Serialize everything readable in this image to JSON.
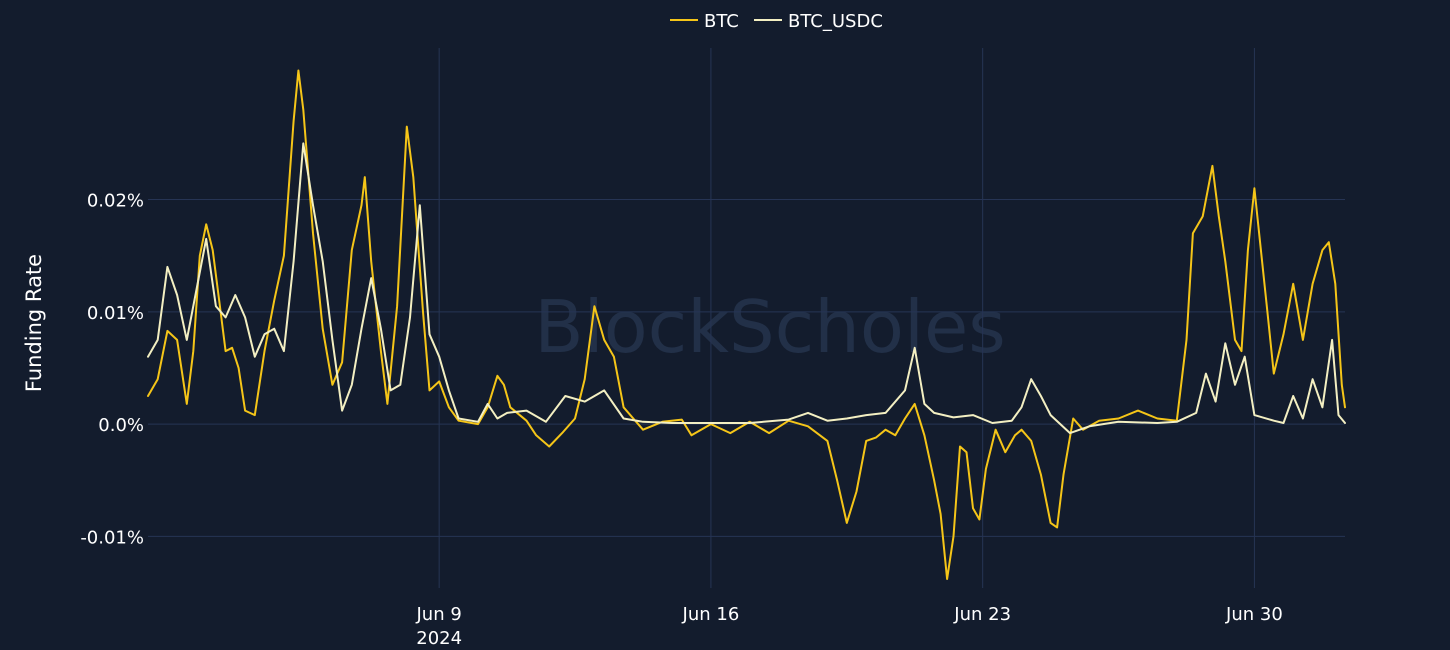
{
  "chart_data": {
    "type": "line",
    "watermark": "BlockScholes",
    "ylabel": "Funding Rate",
    "x_axis": {
      "range": [
        "2024-06-01T12:00",
        "2024-07-02T08:00"
      ],
      "ticks": [
        {
          "value": "2024-06-09",
          "label": "Jun 9",
          "sublabel": "2024"
        },
        {
          "value": "2024-06-16",
          "label": "Jun 16",
          "sublabel": ""
        },
        {
          "value": "2024-06-23",
          "label": "Jun 23",
          "sublabel": ""
        },
        {
          "value": "2024-06-30",
          "label": "Jun 30",
          "sublabel": ""
        }
      ]
    },
    "y_axis": {
      "range": [
        -0.0146,
        0.0335
      ],
      "ticks": [
        {
          "value": -0.01,
          "label": "-0.01%"
        },
        {
          "value": 0.0,
          "label": "0.0%"
        },
        {
          "value": 0.01,
          "label": "0.01%"
        },
        {
          "value": 0.02,
          "label": "0.02%"
        }
      ]
    },
    "grid": true,
    "legend_position": "top-center",
    "series": [
      {
        "name": "BTC",
        "color": "#f5c518",
        "points": [
          [
            "2024-06-01T12:00",
            0.0025
          ],
          [
            "2024-06-01T18:00",
            0.004
          ],
          [
            "2024-06-02T00:00",
            0.0083
          ],
          [
            "2024-06-02T06:00",
            0.0075
          ],
          [
            "2024-06-02T12:00",
            0.0018
          ],
          [
            "2024-06-02T16:00",
            0.0065
          ],
          [
            "2024-06-02T20:00",
            0.015
          ],
          [
            "2024-06-03T00:00",
            0.0178
          ],
          [
            "2024-06-03T04:00",
            0.0155
          ],
          [
            "2024-06-03T08:00",
            0.011
          ],
          [
            "2024-06-03T12:00",
            0.0065
          ],
          [
            "2024-06-03T16:00",
            0.0068
          ],
          [
            "2024-06-03T20:00",
            0.005
          ],
          [
            "2024-06-04T00:00",
            0.0012
          ],
          [
            "2024-06-04T06:00",
            0.0008
          ],
          [
            "2024-06-04T12:00",
            0.0065
          ],
          [
            "2024-06-04T18:00",
            0.011
          ],
          [
            "2024-06-05T00:00",
            0.015
          ],
          [
            "2024-06-05T06:00",
            0.027
          ],
          [
            "2024-06-05T09:00",
            0.0315
          ],
          [
            "2024-06-05T12:00",
            0.028
          ],
          [
            "2024-06-05T18:00",
            0.017
          ],
          [
            "2024-06-06T00:00",
            0.0085
          ],
          [
            "2024-06-06T06:00",
            0.0035
          ],
          [
            "2024-06-06T12:00",
            0.0055
          ],
          [
            "2024-06-06T18:00",
            0.0155
          ],
          [
            "2024-06-07T00:00",
            0.0195
          ],
          [
            "2024-06-07T02:00",
            0.022
          ],
          [
            "2024-06-07T06:00",
            0.0145
          ],
          [
            "2024-06-07T12:00",
            0.0065
          ],
          [
            "2024-06-07T16:00",
            0.0018
          ],
          [
            "2024-06-07T22:00",
            0.0105
          ],
          [
            "2024-06-08T04:00",
            0.0265
          ],
          [
            "2024-06-08T08:00",
            0.022
          ],
          [
            "2024-06-08T14:00",
            0.01
          ],
          [
            "2024-06-08T18:00",
            0.003
          ],
          [
            "2024-06-09T00:00",
            0.0038
          ],
          [
            "2024-06-09T06:00",
            0.0015
          ],
          [
            "2024-06-09T12:00",
            0.0003
          ],
          [
            "2024-06-10T00:00",
            0.0
          ],
          [
            "2024-06-10T06:00",
            0.0015
          ],
          [
            "2024-06-10T12:00",
            0.0043
          ],
          [
            "2024-06-10T16:00",
            0.0035
          ],
          [
            "2024-06-10T20:00",
            0.0015
          ],
          [
            "2024-06-11T06:00",
            0.0003
          ],
          [
            "2024-06-11T12:00",
            -0.001
          ],
          [
            "2024-06-11T20:00",
            -0.002
          ],
          [
            "2024-06-12T04:00",
            -0.0008
          ],
          [
            "2024-06-12T12:00",
            0.0005
          ],
          [
            "2024-06-12T18:00",
            0.004
          ],
          [
            "2024-06-13T00:00",
            0.0105
          ],
          [
            "2024-06-13T06:00",
            0.0075
          ],
          [
            "2024-06-13T12:00",
            0.006
          ],
          [
            "2024-06-13T18:00",
            0.0015
          ],
          [
            "2024-06-14T06:00",
            -0.0005
          ],
          [
            "2024-06-14T18:00",
            0.0002
          ],
          [
            "2024-06-15T06:00",
            0.0004
          ],
          [
            "2024-06-15T12:00",
            -0.001
          ],
          [
            "2024-06-16T00:00",
            0.0
          ],
          [
            "2024-06-16T12:00",
            -0.0008
          ],
          [
            "2024-06-17T00:00",
            0.0002
          ],
          [
            "2024-06-17T12:00",
            -0.0008
          ],
          [
            "2024-06-18T00:00",
            0.0003
          ],
          [
            "2024-06-18T12:00",
            -0.0002
          ],
          [
            "2024-06-19T00:00",
            -0.0015
          ],
          [
            "2024-06-19T06:00",
            -0.005
          ],
          [
            "2024-06-19T12:00",
            -0.0088
          ],
          [
            "2024-06-19T18:00",
            -0.006
          ],
          [
            "2024-06-20T00:00",
            -0.0015
          ],
          [
            "2024-06-20T06:00",
            -0.0012
          ],
          [
            "2024-06-20T12:00",
            -0.0005
          ],
          [
            "2024-06-20T18:00",
            -0.001
          ],
          [
            "2024-06-21T00:00",
            0.0005
          ],
          [
            "2024-06-21T06:00",
            0.0018
          ],
          [
            "2024-06-21T12:00",
            -0.001
          ],
          [
            "2024-06-21T18:00",
            -0.005
          ],
          [
            "2024-06-21T22:00",
            -0.008
          ],
          [
            "2024-06-22T02:00",
            -0.0138
          ],
          [
            "2024-06-22T06:00",
            -0.01
          ],
          [
            "2024-06-22T10:00",
            -0.002
          ],
          [
            "2024-06-22T14:00",
            -0.0025
          ],
          [
            "2024-06-22T18:00",
            -0.0075
          ],
          [
            "2024-06-22T22:00",
            -0.0085
          ],
          [
            "2024-06-23T02:00",
            -0.004
          ],
          [
            "2024-06-23T08:00",
            -0.0005
          ],
          [
            "2024-06-23T14:00",
            -0.0025
          ],
          [
            "2024-06-23T20:00",
            -0.001
          ],
          [
            "2024-06-24T00:00",
            -0.0005
          ],
          [
            "2024-06-24T06:00",
            -0.0015
          ],
          [
            "2024-06-24T12:00",
            -0.0045
          ],
          [
            "2024-06-24T18:00",
            -0.0088
          ],
          [
            "2024-06-24T22:00",
            -0.0092
          ],
          [
            "2024-06-25T02:00",
            -0.0045
          ],
          [
            "2024-06-25T08:00",
            0.0005
          ],
          [
            "2024-06-25T14:00",
            -0.0005
          ],
          [
            "2024-06-26T00:00",
            0.0003
          ],
          [
            "2024-06-26T12:00",
            0.0005
          ],
          [
            "2024-06-27T00:00",
            0.0012
          ],
          [
            "2024-06-27T12:00",
            0.0005
          ],
          [
            "2024-06-28T00:00",
            0.0003
          ],
          [
            "2024-06-28T06:00",
            0.0075
          ],
          [
            "2024-06-28T10:00",
            0.017
          ],
          [
            "2024-06-28T16:00",
            0.0185
          ],
          [
            "2024-06-28T22:00",
            0.023
          ],
          [
            "2024-06-29T02:00",
            0.0185
          ],
          [
            "2024-06-29T06:00",
            0.0145
          ],
          [
            "2024-06-29T12:00",
            0.0075
          ],
          [
            "2024-06-29T16:00",
            0.0065
          ],
          [
            "2024-06-29T20:00",
            0.0155
          ],
          [
            "2024-06-30T00:00",
            0.021
          ],
          [
            "2024-06-30T04:00",
            0.0155
          ],
          [
            "2024-06-30T08:00",
            0.01
          ],
          [
            "2024-06-30T12:00",
            0.0045
          ],
          [
            "2024-06-30T18:00",
            0.008
          ],
          [
            "2024-07-01T00:00",
            0.0125
          ],
          [
            "2024-07-01T06:00",
            0.0075
          ],
          [
            "2024-07-01T12:00",
            0.0125
          ],
          [
            "2024-07-01T18:00",
            0.0155
          ],
          [
            "2024-07-01T22:00",
            0.0162
          ],
          [
            "2024-07-02T02:00",
            0.0125
          ],
          [
            "2024-07-02T06:00",
            0.0035
          ],
          [
            "2024-07-02T08:00",
            0.0015
          ]
        ]
      },
      {
        "name": "BTC_USDC",
        "color": "#f3efc2",
        "points": [
          [
            "2024-06-01T12:00",
            0.006
          ],
          [
            "2024-06-01T18:00",
            0.0075
          ],
          [
            "2024-06-02T00:00",
            0.014
          ],
          [
            "2024-06-02T06:00",
            0.0115
          ],
          [
            "2024-06-02T12:00",
            0.0075
          ],
          [
            "2024-06-02T18:00",
            0.012
          ],
          [
            "2024-06-03T00:00",
            0.0165
          ],
          [
            "2024-06-03T06:00",
            0.0105
          ],
          [
            "2024-06-03T12:00",
            0.0095
          ],
          [
            "2024-06-03T18:00",
            0.0115
          ],
          [
            "2024-06-04T00:00",
            0.0095
          ],
          [
            "2024-06-04T06:00",
            0.006
          ],
          [
            "2024-06-04T12:00",
            0.008
          ],
          [
            "2024-06-04T18:00",
            0.0085
          ],
          [
            "2024-06-05T00:00",
            0.0065
          ],
          [
            "2024-06-05T06:00",
            0.0145
          ],
          [
            "2024-06-05T12:00",
            0.025
          ],
          [
            "2024-06-05T18:00",
            0.0195
          ],
          [
            "2024-06-06T00:00",
            0.0145
          ],
          [
            "2024-06-06T06:00",
            0.0075
          ],
          [
            "2024-06-06T12:00",
            0.0012
          ],
          [
            "2024-06-06T18:00",
            0.0035
          ],
          [
            "2024-06-07T00:00",
            0.0085
          ],
          [
            "2024-06-07T06:00",
            0.013
          ],
          [
            "2024-06-07T12:00",
            0.0085
          ],
          [
            "2024-06-07T18:00",
            0.003
          ],
          [
            "2024-06-08T00:00",
            0.0035
          ],
          [
            "2024-06-08T06:00",
            0.0095
          ],
          [
            "2024-06-08T12:00",
            0.0195
          ],
          [
            "2024-06-08T18:00",
            0.008
          ],
          [
            "2024-06-09T00:00",
            0.006
          ],
          [
            "2024-06-09T06:00",
            0.003
          ],
          [
            "2024-06-09T12:00",
            0.0005
          ],
          [
            "2024-06-10T00:00",
            0.0002
          ],
          [
            "2024-06-10T06:00",
            0.0018
          ],
          [
            "2024-06-10T12:00",
            0.0005
          ],
          [
            "2024-06-10T18:00",
            0.001
          ],
          [
            "2024-06-11T06:00",
            0.0012
          ],
          [
            "2024-06-11T18:00",
            0.0002
          ],
          [
            "2024-06-12T06:00",
            0.0025
          ],
          [
            "2024-06-12T18:00",
            0.002
          ],
          [
            "2024-06-13T06:00",
            0.003
          ],
          [
            "2024-06-13T18:00",
            0.0005
          ],
          [
            "2024-06-14T06:00",
            0.0002
          ],
          [
            "2024-06-15T00:00",
            0.0001
          ],
          [
            "2024-06-16T00:00",
            0.0001
          ],
          [
            "2024-06-17T00:00",
            0.0001
          ],
          [
            "2024-06-18T00:00",
            0.0004
          ],
          [
            "2024-06-18T12:00",
            0.001
          ],
          [
            "2024-06-19T00:00",
            0.0003
          ],
          [
            "2024-06-19T12:00",
            0.0005
          ],
          [
            "2024-06-20T00:00",
            0.0008
          ],
          [
            "2024-06-20T12:00",
            0.001
          ],
          [
            "2024-06-21T00:00",
            0.003
          ],
          [
            "2024-06-21T06:00",
            0.0068
          ],
          [
            "2024-06-21T12:00",
            0.0018
          ],
          [
            "2024-06-21T18:00",
            0.001
          ],
          [
            "2024-06-22T06:00",
            0.0006
          ],
          [
            "2024-06-22T18:00",
            0.0008
          ],
          [
            "2024-06-23T06:00",
            0.0001
          ],
          [
            "2024-06-23T18:00",
            0.0003
          ],
          [
            "2024-06-24T00:00",
            0.0015
          ],
          [
            "2024-06-24T06:00",
            0.004
          ],
          [
            "2024-06-24T12:00",
            0.0025
          ],
          [
            "2024-06-24T18:00",
            0.0008
          ],
          [
            "2024-06-25T06:00",
            -0.0008
          ],
          [
            "2024-06-25T18:00",
            -0.0002
          ],
          [
            "2024-06-26T12:00",
            0.0002
          ],
          [
            "2024-06-27T12:00",
            0.0001
          ],
          [
            "2024-06-28T00:00",
            0.0002
          ],
          [
            "2024-06-28T12:00",
            0.001
          ],
          [
            "2024-06-28T18:00",
            0.0045
          ],
          [
            "2024-06-29T00:00",
            0.002
          ],
          [
            "2024-06-29T06:00",
            0.0072
          ],
          [
            "2024-06-29T12:00",
            0.0035
          ],
          [
            "2024-06-29T18:00",
            0.006
          ],
          [
            "2024-06-30T00:00",
            0.0008
          ],
          [
            "2024-06-30T12:00",
            0.0003
          ],
          [
            "2024-06-30T18:00",
            0.0001
          ],
          [
            "2024-07-01T00:00",
            0.0025
          ],
          [
            "2024-07-01T06:00",
            0.0005
          ],
          [
            "2024-07-01T12:00",
            0.004
          ],
          [
            "2024-07-01T18:00",
            0.0015
          ],
          [
            "2024-07-02T00:00",
            0.0075
          ],
          [
            "2024-07-02T04:00",
            0.0008
          ],
          [
            "2024-07-02T08:00",
            0.0001
          ]
        ]
      }
    ]
  }
}
